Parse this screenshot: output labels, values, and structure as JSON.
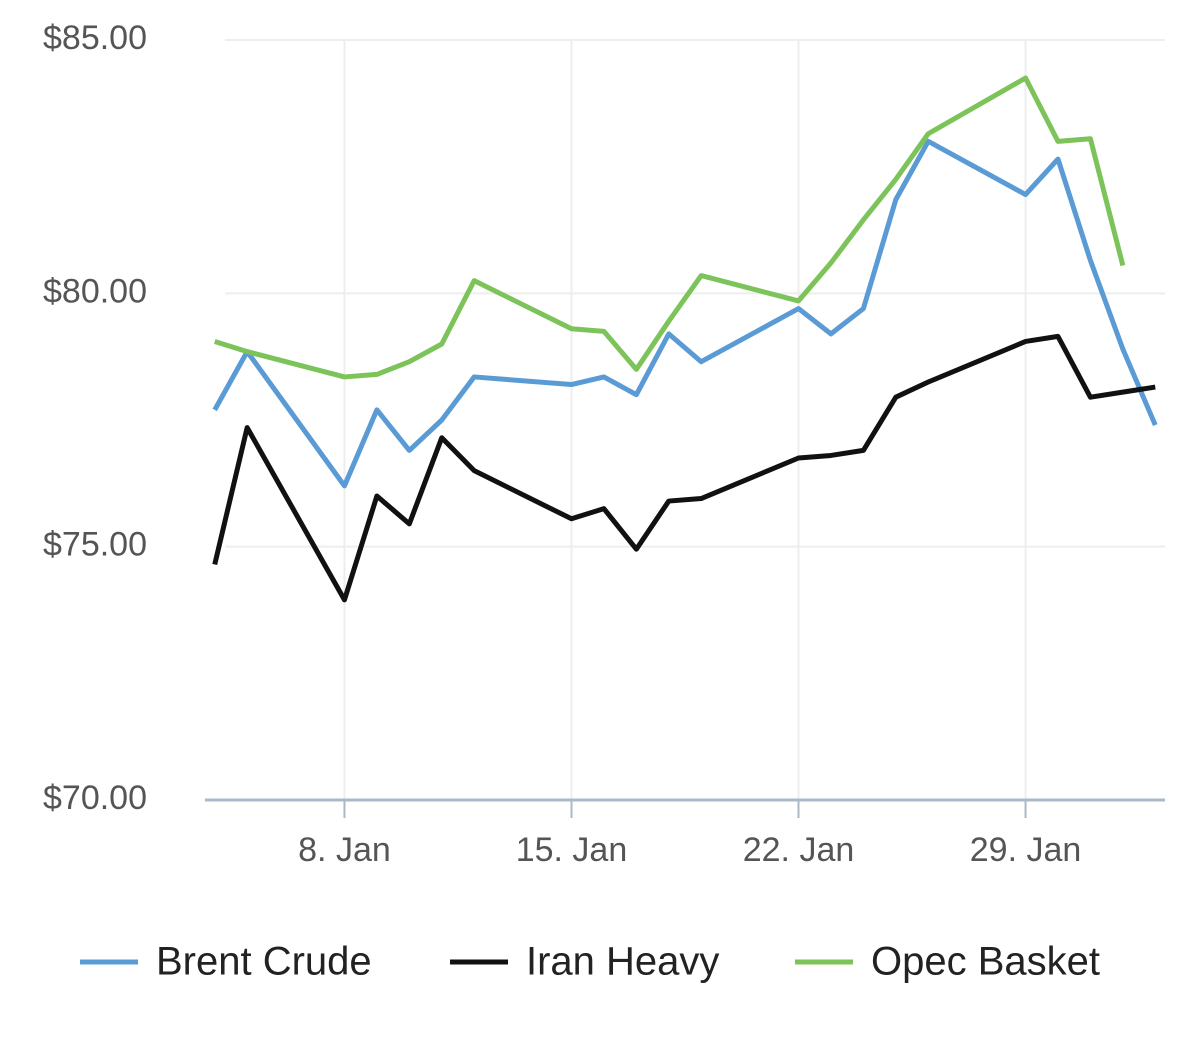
{
  "chart_data": {
    "type": "line",
    "x": [
      4,
      5,
      8,
      9,
      10,
      11,
      12,
      15,
      16,
      17,
      18,
      19,
      22,
      23,
      24,
      25,
      26,
      29,
      30,
      31,
      32,
      33
    ],
    "series": [
      {
        "name": "Brent Crude",
        "color": "#5b9bd5",
        "values": [
          77.7,
          78.85,
          76.2,
          77.7,
          76.9,
          77.5,
          78.35,
          78.2,
          78.35,
          78.0,
          79.2,
          78.65,
          79.7,
          79.2,
          79.7,
          81.85,
          83.0,
          81.95,
          82.65,
          80.65,
          78.9,
          77.4
        ]
      },
      {
        "name": "Iran Heavy",
        "color": "#111111",
        "values": [
          74.65,
          77.35,
          73.95,
          76.0,
          75.45,
          77.15,
          76.5,
          75.55,
          75.75,
          74.95,
          75.9,
          75.95,
          76.75,
          76.8,
          76.9,
          77.95,
          78.25,
          79.05,
          79.15,
          77.95,
          78.05,
          78.15
        ]
      },
      {
        "name": "Opec Basket",
        "color": "#7cc35a",
        "values": [
          79.05,
          78.85,
          78.35,
          78.4,
          78.65,
          79.0,
          80.25,
          79.3,
          79.25,
          78.5,
          79.45,
          80.35,
          79.85,
          80.6,
          81.45,
          82.25,
          83.15,
          84.25,
          83.0,
          83.05,
          80.55,
          null
        ]
      }
    ],
    "xlim": [
      3.7,
      33.3
    ],
    "xticks": [
      {
        "value": 8,
        "label": "8. Jan"
      },
      {
        "value": 15,
        "label": "15. Jan"
      },
      {
        "value": 22,
        "label": "22. Jan"
      },
      {
        "value": 29,
        "label": "29. Jan"
      }
    ],
    "ylim": [
      70,
      85
    ],
    "yticks": [
      {
        "value": 70,
        "label": "$70.00"
      },
      {
        "value": 75,
        "label": "$75.00"
      },
      {
        "value": 80,
        "label": "$80.00"
      },
      {
        "value": 85,
        "label": "$85.00"
      }
    ],
    "grid": true,
    "legend": "bottom"
  }
}
